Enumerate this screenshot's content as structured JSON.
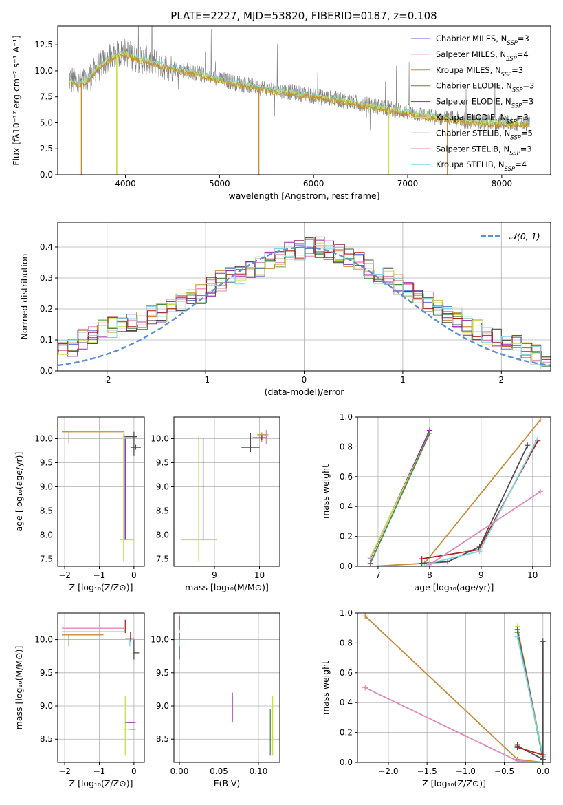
{
  "figure": {
    "title": "PLATE=2227, MJD=53820, FIBERID=0187, z=0.108"
  },
  "palette": {
    "Chabrier MILES": "#5b6bd6",
    "Salpeter MILES": "#e08ab7",
    "Kroupa MILES": "#c98a3a",
    "Chabrier ELODIE": "#4a8a4a",
    "Salpeter ELODIE": "#9b27b0",
    "Kroupa ELODIE": "#c8e04a",
    "Chabrier STELIB": "#4d4d4d",
    "Salpeter STELIB": "#b02020",
    "Kroupa STELIB": "#7dd6e0",
    "data": "#808080",
    "orange_fit": "#e06a20",
    "gaussian": "#5b8fd6",
    "grid": "#b0b0b0"
  },
  "chart_data": [
    {
      "id": "spectrum",
      "type": "line",
      "title": "PLATE=2227, MJD=53820, FIBERID=0187, z=0.108",
      "xlabel": "wavelength [Angstrom, rest frame]",
      "ylabel": "Flux [fλ10⁻¹⁷ erg cm⁻² s⁻¹ A⁻¹]",
      "xlim": [
        3280,
        8520
      ],
      "ylim": [
        0,
        14.3
      ],
      "xticks": [
        4000,
        5000,
        6000,
        7000,
        8000
      ],
      "yticks": [
        0.0,
        2.5,
        5.0,
        7.5,
        10.0,
        12.5
      ],
      "ytick_labels": [
        "0.0",
        "2.5",
        "5.0",
        "7.5",
        "10.0",
        "12.5"
      ],
      "grid": false,
      "legend_position": "top-right",
      "legend": [
        {
          "label": "Chabrier MILES, N",
          "sub": "SSP",
          "suffix": "=3",
          "series": "Chabrier MILES"
        },
        {
          "label": "Salpeter MILES, N",
          "sub": "SSP",
          "suffix": "=4",
          "series": "Salpeter MILES"
        },
        {
          "label": "Kroupa MILES, N",
          "sub": "SSP",
          "suffix": "=3",
          "series": "Kroupa MILES"
        },
        {
          "label": "Chabrier ELODIE, N",
          "sub": "SSP",
          "suffix": "=3",
          "series": "Chabrier ELODIE"
        },
        {
          "label": "Salpeter ELODIE, N",
          "sub": "SSP",
          "suffix": "=3",
          "series": "Salpeter ELODIE"
        },
        {
          "label": "Kroupa ELODIE, N",
          "sub": "SSP",
          "suffix": "=3",
          "series": "Kroupa ELODIE"
        },
        {
          "label": "Chabrier STELIB, N",
          "sub": "SSP",
          "suffix": "=5",
          "series": "Chabrier STELIB"
        },
        {
          "label": "Salpeter STELIB, N",
          "sub": "SSP",
          "suffix": "=3",
          "series": "Salpeter STELIB"
        },
        {
          "label": "Kroupa STELIB, N",
          "sub": "SSP",
          "suffix": "=4",
          "series": "Kroupa STELIB"
        }
      ],
      "data_envelope": {
        "x": [
          3400,
          3500,
          3600,
          3700,
          3800,
          3900,
          4000,
          4100,
          4300,
          4500,
          4800,
          5000,
          5200,
          5500,
          5800,
          6000,
          6300,
          6600,
          6900,
          7200,
          7500,
          7800,
          8100,
          8300
        ],
        "y": [
          9.3,
          8.7,
          9.2,
          10.3,
          11.0,
          11.5,
          11.8,
          11.3,
          10.8,
          10.3,
          9.7,
          9.2,
          8.8,
          8.3,
          7.9,
          7.6,
          7.2,
          6.7,
          6.2,
          5.7,
          5.3,
          5.1,
          5.0,
          4.9
        ]
      },
      "model_fits": [
        "Kroupa STELIB",
        "Kroupa ELODIE",
        "Kroupa MILES"
      ],
      "dropouts": [
        {
          "series": "Kroupa MILES",
          "x_from": 3530,
          "x_to": 3535
        },
        {
          "series": "Kroupa ELODIE",
          "x_from": 3905,
          "x_to": 3910
        },
        {
          "series": "Kroupa MILES",
          "x_from": 5415,
          "x_to": 5420
        },
        {
          "series": "Kroupa ELODIE",
          "x_from": 6795,
          "x_to": 6800
        },
        {
          "series": "Kroupa MILES",
          "x_from": 7420,
          "x_to": 7425
        }
      ]
    },
    {
      "id": "residuals",
      "type": "bar",
      "xlabel": "(data-model)/error",
      "ylabel": "Normed distribution",
      "xlim": [
        -2.5,
        2.5
      ],
      "ylim": [
        0,
        0.48
      ],
      "xticks": [
        -2,
        -1,
        0,
        1,
        2
      ],
      "yticks": [
        0.0,
        0.1,
        0.2,
        0.3,
        0.4
      ],
      "ytick_labels": [
        "0.0",
        "0.1",
        "0.2",
        "0.3",
        "0.4"
      ],
      "grid": true,
      "legend_position": "top-right",
      "legend": [
        {
          "label": "𝒩(0, 1)",
          "series": "gaussian"
        }
      ],
      "bin_width": 0.1,
      "base_histogram": [
        0.02,
        0.03,
        0.04,
        0.05,
        0.06,
        0.07,
        0.08,
        0.1,
        0.12,
        0.13,
        0.14,
        0.15,
        0.15,
        0.16,
        0.18,
        0.19,
        0.2,
        0.22,
        0.24,
        0.25,
        0.27,
        0.29,
        0.3,
        0.31,
        0.33,
        0.34,
        0.36,
        0.37,
        0.38,
        0.39,
        0.4,
        0.4,
        0.39,
        0.38,
        0.37,
        0.35,
        0.33,
        0.31,
        0.3,
        0.28,
        0.26,
        0.24,
        0.22,
        0.2,
        0.19,
        0.17,
        0.15,
        0.13,
        0.11,
        0.1,
        0.09,
        0.08,
        0.06,
        0.05,
        0.04,
        0.04,
        0.03,
        0.03,
        0.02,
        0.02
      ],
      "series": [
        "Chabrier MILES",
        "Salpeter MILES",
        "Kroupa MILES",
        "Chabrier ELODIE",
        "Salpeter ELODIE",
        "Kroupa ELODIE",
        "Chabrier STELIB",
        "Salpeter STELIB",
        "Kroupa STELIB"
      ]
    },
    {
      "id": "age_vs_Z",
      "type": "scatter",
      "xlabel": "Z [log₁₀(Z/Z⊙)]",
      "ylabel": "age  [log₁₀(age/yr)]",
      "xlim": [
        -2.2,
        0.3
      ],
      "ylim": [
        7.35,
        10.45
      ],
      "xticks": [
        -2,
        -1,
        0
      ],
      "xtick_labels": [
        "−2",
        "−1",
        "0"
      ],
      "yticks": [
        7.5,
        8.0,
        8.5,
        9.0,
        9.5,
        10.0
      ],
      "ytick_labels": [
        "7.5",
        "8.0",
        "8.5",
        "9.0",
        "9.5",
        "10.0"
      ],
      "grid": true,
      "points": [
        {
          "series": "Kroupa MILES",
          "x": -2.08,
          "y": 10.14,
          "xerr": [
            0,
            1.8
          ],
          "yerr": [
            0,
            0
          ]
        },
        {
          "series": "Salpeter MILES",
          "x": -1.88,
          "y": 10.15,
          "xerr": [
            0,
            1.6
          ],
          "yerr": [
            0.25,
            0
          ]
        },
        {
          "series": "Chabrier STELIB",
          "x": 0.0,
          "y": 10.04,
          "xerr": [
            0.3,
            0.1
          ],
          "yerr": [
            0.4,
            0.1
          ]
        },
        {
          "series": "Chabrier STELIB",
          "x": 0.05,
          "y": 9.82,
          "xerr": [
            0.15,
            0.15
          ],
          "yerr": [
            0.05,
            0.05
          ]
        },
        {
          "series": "Kroupa ELODIE",
          "x": -0.3,
          "y": 7.9,
          "xerr": [
            0.1,
            0.3
          ],
          "yerr": [
            0.45,
            2.2
          ]
        },
        {
          "series": "Kroupa STELIB",
          "x": -0.28,
          "y": 7.9,
          "xerr": [
            0.0,
            0.0
          ],
          "yerr": [
            0,
            2.2
          ]
        },
        {
          "series": "Salpeter ELODIE",
          "x": -0.25,
          "y": 7.9,
          "xerr": [
            0,
            0
          ],
          "yerr": [
            0,
            2.1
          ]
        }
      ]
    },
    {
      "id": "age_vs_mass",
      "type": "scatter",
      "xlabel": "mass [log₁₀(M/M⊙)]",
      "ylabel": "",
      "xlim": [
        8.1,
        10.45
      ],
      "ylim": [
        7.35,
        10.45
      ],
      "xticks": [
        9,
        10
      ],
      "yticks": [
        7.5,
        8.0,
        8.5,
        9.0,
        9.5,
        10.0
      ],
      "ytick_labels": [
        "7.5",
        "8.0",
        "8.5",
        "9.0",
        "9.5",
        "10.0"
      ],
      "grid": true,
      "points": [
        {
          "series": "Kroupa ELODIE",
          "x": 8.65,
          "y": 7.9,
          "xerr": [
            0.4,
            0.4
          ],
          "yerr": [
            0.45,
            2.15
          ]
        },
        {
          "series": "Salpeter ELODIE",
          "x": 8.75,
          "y": 7.9,
          "xerr": [
            0,
            0
          ],
          "yerr": [
            0,
            2.1
          ]
        },
        {
          "series": "Chabrier STELIB",
          "x": 9.8,
          "y": 9.82,
          "xerr": [
            0.2,
            0.2
          ],
          "yerr": [
            0.1,
            0.3
          ]
        },
        {
          "series": "Salpeter MILES",
          "x": 10.15,
          "y": 10.08,
          "xerr": [
            0.1,
            0.05
          ],
          "yerr": [
            0.2,
            0.1
          ]
        },
        {
          "series": "Kroupa MILES",
          "x": 10.05,
          "y": 10.08,
          "xerr": [
            0.1,
            0.1
          ],
          "yerr": [
            0.15,
            0.05
          ]
        },
        {
          "series": "Salpeter STELIB",
          "x": 10.05,
          "y": 10.02,
          "xerr": [
            0.2,
            0.1
          ],
          "yerr": [
            0.05,
            0.05
          ]
        }
      ]
    },
    {
      "id": "weight_vs_age",
      "type": "line",
      "xlabel": "age  [log₁₀(age/yr)]",
      "ylabel": "mass weight",
      "xlim": [
        6.6,
        10.35
      ],
      "ylim": [
        0,
        1.0
      ],
      "xticks": [
        7,
        8,
        9,
        10
      ],
      "yticks": [
        0.0,
        0.2,
        0.4,
        0.6,
        0.8,
        1.0
      ],
      "ytick_labels": [
        "0.0",
        "0.2",
        "0.4",
        "0.6",
        "0.8",
        "1.0"
      ],
      "grid": true,
      "series": [
        {
          "series": "Salpeter ELODIE",
          "x": [
            6.85,
            8.0
          ],
          "y": [
            0.05,
            0.91
          ]
        },
        {
          "series": "Kroupa ELODIE",
          "x": [
            6.85,
            8.0
          ],
          "y": [
            0.06,
            0.89
          ]
        },
        {
          "series": "Chabrier ELODIE",
          "x": [
            6.85,
            8.0
          ],
          "y": [
            0.02,
            0.89
          ]
        },
        {
          "series": "Kroupa MILES",
          "x": [
            6.9,
            7.9,
            10.15
          ],
          "y": [
            0.0,
            0.02,
            0.98
          ]
        },
        {
          "series": "Chabrier STELIB",
          "x": [
            7.85,
            8.35,
            8.97,
            9.9
          ],
          "y": [
            0.02,
            0.03,
            0.13,
            0.81
          ]
        },
        {
          "series": "Salpeter STELIB",
          "x": [
            7.85,
            8.95,
            10.1
          ],
          "y": [
            0.05,
            0.11,
            0.84
          ]
        },
        {
          "series": "Kroupa STELIB",
          "x": [
            7.9,
            8.0,
            8.97,
            10.1
          ],
          "y": [
            0.0,
            0.02,
            0.1,
            0.86
          ]
        },
        {
          "series": "Salpeter MILES",
          "x": [
            8.0,
            10.15
          ],
          "y": [
            0.01,
            0.5
          ]
        }
      ]
    },
    {
      "id": "mass_vs_Z",
      "type": "scatter",
      "xlabel": "Z [log₁₀(Z/Z⊙)]",
      "ylabel": "mass [log₁₀(M/M⊙)]",
      "xlim": [
        -2.2,
        0.3
      ],
      "ylim": [
        8.15,
        10.4
      ],
      "xticks": [
        -2,
        -1,
        0
      ],
      "xtick_labels": [
        "−2",
        "−1",
        "0"
      ],
      "yticks": [
        8.5,
        9.0,
        9.5,
        10.0
      ],
      "ytick_labels": [
        "8.5",
        "9.0",
        "9.5",
        "10.0"
      ],
      "grid": true,
      "points": [
        {
          "series": "Salpeter MILES",
          "x": -2.08,
          "y": 10.17,
          "xerr": [
            0,
            1.8
          ],
          "yerr": [
            0,
            0
          ]
        },
        {
          "series": "Kroupa STELIB",
          "x": -2.08,
          "y": 10.12,
          "xerr": [
            0,
            1.8
          ],
          "yerr": [
            0,
            0
          ]
        },
        {
          "series": "Kroupa MILES",
          "x": -2.08,
          "y": 10.07,
          "xerr": [
            0,
            1.2
          ],
          "yerr": [
            0,
            0
          ]
        },
        {
          "series": "Kroupa MILES",
          "x": -1.88,
          "y": 10.05,
          "xerr": [
            0,
            0
          ],
          "yerr": [
            0.15,
            0.02
          ]
        },
        {
          "series": "Chabrier STELIB",
          "x": 0.0,
          "y": 9.8,
          "xerr": [
            0.02,
            0.15
          ],
          "yerr": [
            0.1,
            0.2
          ]
        },
        {
          "series": "Salpeter STELIB",
          "x": -0.1,
          "y": 10.02,
          "xerr": [
            0.15,
            0.1
          ],
          "yerr": [
            0.05,
            0.1
          ]
        },
        {
          "series": "Salpeter STELIB",
          "x": -0.25,
          "y": 10.2,
          "xerr": [
            0,
            0
          ],
          "yerr": [
            0.1,
            0.1
          ]
        },
        {
          "series": "Kroupa ELODIE",
          "x": -0.25,
          "y": 8.65,
          "xerr": [
            0.1,
            0.3
          ],
          "yerr": [
            0.4,
            0.5
          ]
        },
        {
          "series": "Salpeter ELODIE",
          "x": -0.15,
          "y": 8.75,
          "xerr": [
            0.1,
            0.2
          ],
          "yerr": [
            0,
            0
          ]
        },
        {
          "series": "Chabrier ELODIE",
          "x": -0.05,
          "y": 8.65,
          "xerr": [
            0.1,
            0.1
          ],
          "yerr": [
            0,
            0
          ]
        },
        {
          "series": "Kroupa STELIB",
          "x": -0.12,
          "y": 9.95,
          "xerr": [
            0.05,
            0.05
          ],
          "yerr": [
            0.05,
            0.05
          ]
        }
      ]
    },
    {
      "id": "mass_vs_EBV",
      "type": "scatter",
      "xlabel": "E(B-V)",
      "ylabel": "",
      "xlim": [
        -0.007,
        0.127
      ],
      "ylim": [
        8.15,
        10.4
      ],
      "xticks": [
        0.0,
        0.05,
        0.1
      ],
      "xtick_labels": [
        "0.00",
        "0.05",
        "0.10"
      ],
      "yticks": [
        8.5,
        9.0,
        9.5,
        10.0
      ],
      "ytick_labels": [
        "8.5",
        "9.0",
        "9.5",
        "10.0"
      ],
      "grid": true,
      "points": [
        {
          "series": "Salpeter STELIB",
          "x": 0.0,
          "y": 10.25,
          "xerr": [
            0,
            0
          ],
          "yerr": [
            0.1,
            0.1
          ]
        },
        {
          "series": "Chabrier STELIB",
          "x": 0.0,
          "y": 9.9,
          "xerr": [
            0,
            0
          ],
          "yerr": [
            0.2,
            0.2
          ]
        },
        {
          "series": "Kroupa STELIB",
          "x": 0.0,
          "y": 9.95,
          "xerr": [
            0,
            0
          ],
          "yerr": [
            0.05,
            0.05
          ]
        },
        {
          "series": "Salpeter ELODIE",
          "x": 0.067,
          "y": 8.95,
          "xerr": [
            0,
            0
          ],
          "yerr": [
            0.2,
            0.25
          ]
        },
        {
          "series": "Kroupa ELODIE",
          "x": 0.118,
          "y": 8.7,
          "xerr": [
            0,
            0
          ],
          "yerr": [
            0.45,
            0.45
          ]
        },
        {
          "series": "Chabrier ELODIE",
          "x": 0.115,
          "y": 8.6,
          "xerr": [
            0,
            0
          ],
          "yerr": [
            0.35,
            0.35
          ]
        }
      ]
    },
    {
      "id": "weight_vs_Z",
      "type": "line",
      "xlabel": "Z [log₁₀(Z/Z⊙)]",
      "ylabel": "mass weight",
      "xlim": [
        -2.4,
        0.1
      ],
      "ylim": [
        0,
        1.0
      ],
      "xticks": [
        -2.0,
        -1.5,
        -1.0,
        -0.5,
        0.0
      ],
      "xtick_labels": [
        "−2.0",
        "−1.5",
        "−1.0",
        "−0.5",
        "0.0"
      ],
      "yticks": [
        0.0,
        0.2,
        0.4,
        0.6,
        0.8,
        1.0
      ],
      "ytick_labels": [
        "0.0",
        "0.2",
        "0.4",
        "0.6",
        "0.8",
        "1.0"
      ],
      "grid": true,
      "series": [
        {
          "series": "Kroupa MILES",
          "x": [
            -2.3,
            -0.33,
            0.0
          ],
          "y": [
            0.98,
            0.02,
            0.0
          ]
        },
        {
          "series": "Salpeter MILES",
          "x": [
            -2.3,
            -0.33,
            0.0
          ],
          "y": [
            0.5,
            0.01,
            0.0
          ]
        },
        {
          "series": "Kroupa ELODIE",
          "x": [
            -0.33,
            0.0
          ],
          "y": [
            0.91,
            0.04
          ]
        },
        {
          "series": "Salpeter ELODIE",
          "x": [
            -0.33,
            0.0
          ],
          "y": [
            0.89,
            0.03
          ]
        },
        {
          "series": "Chabrier ELODIE",
          "x": [
            -0.33,
            0.0
          ],
          "y": [
            0.87,
            0.02
          ]
        },
        {
          "series": "Kroupa STELIB",
          "x": [
            -0.33,
            0.0
          ],
          "y": [
            0.84,
            0.04
          ]
        },
        {
          "series": "Chabrier STELIB",
          "x": [
            -0.33,
            -0.33,
            0.0,
            0.0
          ],
          "y": [
            0.12,
            0.11,
            0.02,
            0.81
          ]
        },
        {
          "series": "Salpeter STELIB",
          "x": [
            -0.33,
            0.0
          ],
          "y": [
            0.1,
            0.05
          ]
        }
      ]
    }
  ]
}
